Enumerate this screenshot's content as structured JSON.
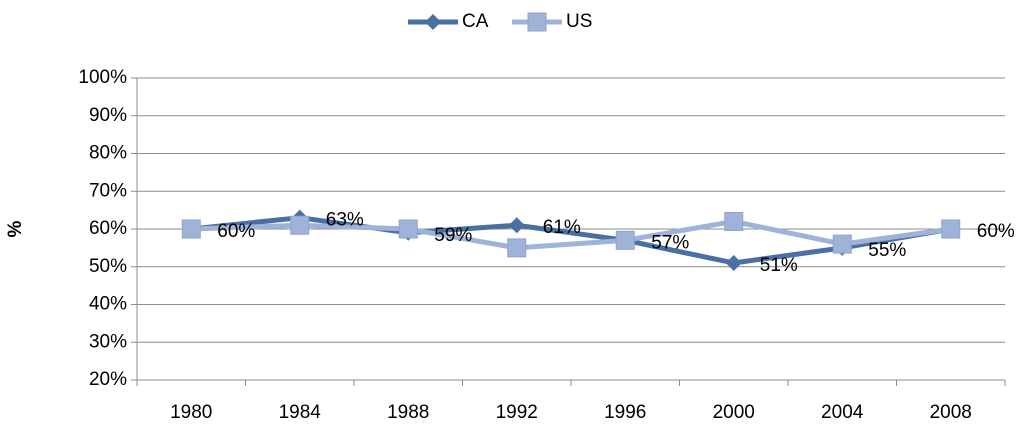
{
  "chart_data": {
    "type": "line",
    "y_label": "%",
    "categories": [
      "1980",
      "1984",
      "1988",
      "1992",
      "1996",
      "2000",
      "2004",
      "2008"
    ],
    "series": [
      {
        "name": "CA",
        "color": "#4a6fa5",
        "marker": "diamond",
        "values": [
          60,
          63,
          59,
          61,
          57,
          51,
          55,
          60
        ],
        "value_labels": [
          "60%",
          "63%",
          "59%",
          "61%",
          "57%",
          "51%",
          "55%",
          "60%"
        ]
      },
      {
        "name": "US",
        "color": "#9fb3d9",
        "marker": "square",
        "values": [
          60,
          61,
          60,
          55,
          57,
          62,
          56,
          60
        ]
      }
    ],
    "ylim": [
      20,
      100
    ],
    "yticks": [
      {
        "value": 20,
        "label": "20%"
      },
      {
        "value": 30,
        "label": "30%"
      },
      {
        "value": 40,
        "label": "40%"
      },
      {
        "value": 50,
        "label": "50%"
      },
      {
        "value": 60,
        "label": "60%"
      },
      {
        "value": 70,
        "label": "70%"
      },
      {
        "value": 80,
        "label": "80%"
      },
      {
        "value": 90,
        "label": "90%"
      },
      {
        "value": 100,
        "label": "100%"
      }
    ],
    "grid": true,
    "legend": "top"
  }
}
